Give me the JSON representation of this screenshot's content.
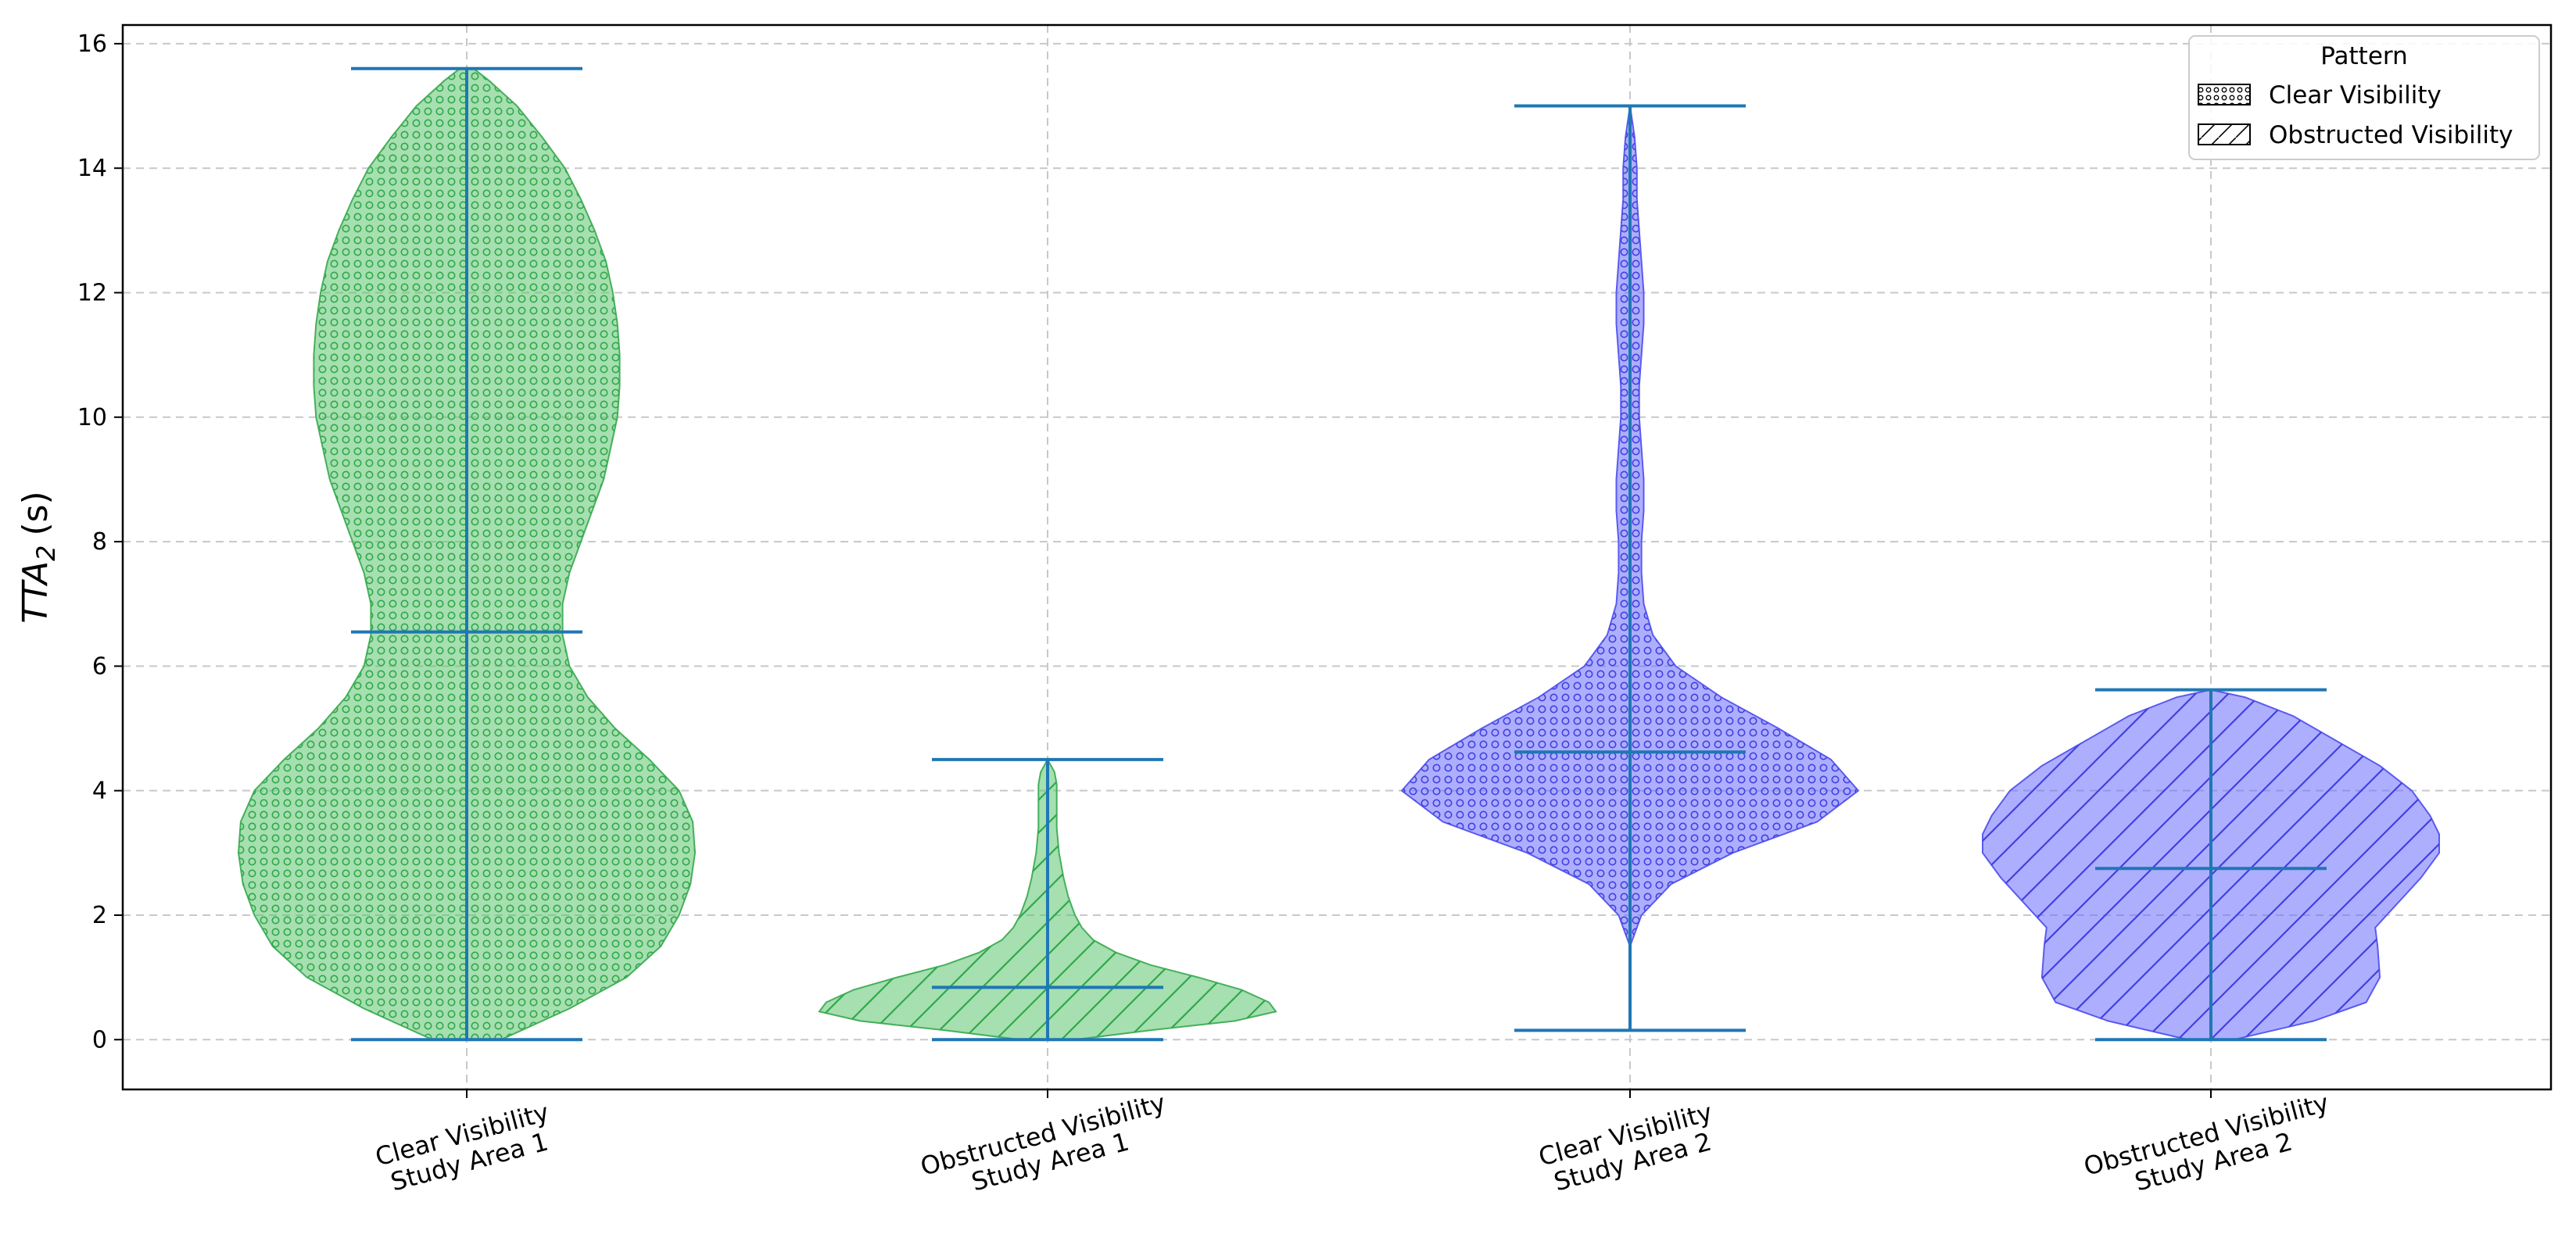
{
  "chart_data": {
    "type": "violin",
    "title": "",
    "xlabel": "",
    "ylabel": {
      "base": "TTA",
      "subscript": "2",
      "unit": "(s)"
    },
    "ylim": [
      -0.8,
      16.3
    ],
    "yticks": [
      0,
      2,
      4,
      6,
      8,
      10,
      12,
      14,
      16
    ],
    "grid": true,
    "categories": [
      [
        "Clear Visibility",
        "Study Area 1"
      ],
      [
        "Obstructed Visibility",
        "Study Area 1"
      ],
      [
        "Clear Visibility",
        "Study Area 2"
      ],
      [
        "Obstructed Visibility",
        "Study Area 2"
      ]
    ],
    "legend": {
      "title": "Pattern",
      "placement": "upper right",
      "entries": [
        {
          "label": "Clear Visibility",
          "pattern": "dots"
        },
        {
          "label": "Obstructed Visibility",
          "pattern": "hatch"
        }
      ]
    },
    "colors": {
      "study_area_1": "#5cc46f",
      "study_area_2": "#6b6bff",
      "whisker": "#1f77b4",
      "grid": "#c8c8c8"
    },
    "series": [
      {
        "min": 0.0,
        "median": 6.55,
        "max": 15.6,
        "pattern": "dots",
        "area": 1,
        "density": [
          [
            0,
            0.15
          ],
          [
            0.5,
            0.45
          ],
          [
            1,
            0.7
          ],
          [
            1.5,
            0.85
          ],
          [
            2,
            0.93
          ],
          [
            2.5,
            0.98
          ],
          [
            3,
            1.0
          ],
          [
            3.5,
            0.99
          ],
          [
            4,
            0.93
          ],
          [
            4.5,
            0.8
          ],
          [
            5,
            0.65
          ],
          [
            5.5,
            0.53
          ],
          [
            6,
            0.45
          ],
          [
            6.5,
            0.42
          ],
          [
            7,
            0.42
          ],
          [
            7.5,
            0.45
          ],
          [
            8,
            0.5
          ],
          [
            8.5,
            0.55
          ],
          [
            9,
            0.6
          ],
          [
            9.5,
            0.63
          ],
          [
            10,
            0.66
          ],
          [
            10.5,
            0.67
          ],
          [
            11,
            0.67
          ],
          [
            11.5,
            0.66
          ],
          [
            12,
            0.64
          ],
          [
            12.5,
            0.61
          ],
          [
            13,
            0.56
          ],
          [
            13.5,
            0.5
          ],
          [
            14,
            0.43
          ],
          [
            14.5,
            0.33
          ],
          [
            15,
            0.22
          ],
          [
            15.4,
            0.1
          ],
          [
            15.6,
            0.03
          ]
        ]
      },
      {
        "min": 0.0,
        "median": 0.84,
        "max": 4.5,
        "pattern": "hatch",
        "area": 1,
        "density": [
          [
            0,
            0.12
          ],
          [
            0.15,
            0.45
          ],
          [
            0.3,
            0.82
          ],
          [
            0.45,
            1.0
          ],
          [
            0.6,
            0.97
          ],
          [
            0.8,
            0.85
          ],
          [
            1.0,
            0.66
          ],
          [
            1.2,
            0.45
          ],
          [
            1.4,
            0.3
          ],
          [
            1.6,
            0.2
          ],
          [
            1.8,
            0.15
          ],
          [
            2.0,
            0.12
          ],
          [
            2.3,
            0.09
          ],
          [
            2.6,
            0.07
          ],
          [
            3.0,
            0.05
          ],
          [
            3.4,
            0.04
          ],
          [
            3.8,
            0.04
          ],
          [
            4.1,
            0.04
          ],
          [
            4.3,
            0.03
          ],
          [
            4.5,
            0.0
          ]
        ]
      },
      {
        "min": 0.15,
        "median": 4.62,
        "max": 15.0,
        "pattern": "dots",
        "area": 2,
        "density": [
          [
            1.5,
            0.0
          ],
          [
            2,
            0.05
          ],
          [
            2.5,
            0.18
          ],
          [
            3,
            0.45
          ],
          [
            3.5,
            0.82
          ],
          [
            4,
            1.0
          ],
          [
            4.5,
            0.88
          ],
          [
            5,
            0.65
          ],
          [
            5.5,
            0.4
          ],
          [
            6,
            0.2
          ],
          [
            6.5,
            0.1
          ],
          [
            7,
            0.06
          ],
          [
            7.5,
            0.05
          ],
          [
            8,
            0.05
          ],
          [
            8.5,
            0.06
          ],
          [
            9,
            0.06
          ],
          [
            9.5,
            0.05
          ],
          [
            10,
            0.04
          ],
          [
            10.5,
            0.04
          ],
          [
            11,
            0.05
          ],
          [
            11.5,
            0.06
          ],
          [
            12,
            0.06
          ],
          [
            12.5,
            0.05
          ],
          [
            13,
            0.04
          ],
          [
            13.5,
            0.03
          ],
          [
            14,
            0.03
          ],
          [
            14.5,
            0.02
          ],
          [
            15,
            0.0
          ]
        ]
      },
      {
        "min": 0.0,
        "median": 2.75,
        "max": 5.62,
        "pattern": "hatch",
        "area": 2,
        "density": [
          [
            0,
            0.1
          ],
          [
            0.3,
            0.45
          ],
          [
            0.6,
            0.68
          ],
          [
            1.0,
            0.74
          ],
          [
            1.5,
            0.73
          ],
          [
            1.8,
            0.72
          ],
          [
            2.2,
            0.82
          ],
          [
            2.6,
            0.92
          ],
          [
            3.0,
            1.0
          ],
          [
            3.3,
            1.0
          ],
          [
            3.6,
            0.96
          ],
          [
            4.0,
            0.88
          ],
          [
            4.4,
            0.74
          ],
          [
            4.8,
            0.55
          ],
          [
            5.2,
            0.36
          ],
          [
            5.5,
            0.15
          ],
          [
            5.62,
            0.0
          ]
        ]
      }
    ]
  }
}
